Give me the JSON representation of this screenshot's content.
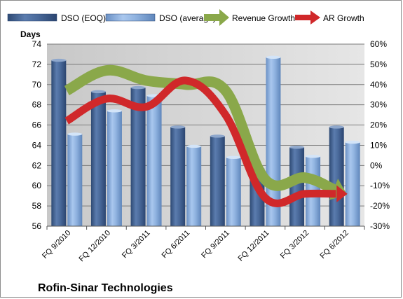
{
  "chart_data": {
    "type": "bar",
    "title": "Rofin-Sinar Technologies",
    "ylabel": "Days",
    "categories": [
      "FQ 9/2010",
      "FQ 12/2010",
      "FQ 3/2011",
      "FQ 6/2011",
      "FQ 9/2011",
      "FQ 12/2011",
      "FQ 3/2012",
      "FQ 6/2012"
    ],
    "ylim": [
      56,
      74
    ],
    "yticks": [
      56,
      58,
      60,
      62,
      64,
      66,
      68,
      70,
      72,
      74
    ],
    "y2lim": [
      -30,
      60
    ],
    "y2ticks": [
      "-30%",
      "-20%",
      "-10%",
      "0%",
      "10%",
      "20%",
      "30%",
      "40%",
      "50%",
      "60%"
    ],
    "grid": true,
    "legend_position": "top",
    "series": [
      {
        "name": "DSO (EOQ)",
        "kind": "bar",
        "axis": "left",
        "color": "#4a6a9b",
        "values": [
          72.4,
          69.3,
          69.7,
          65.8,
          64.9,
          61.7,
          63.8,
          65.8
        ]
      },
      {
        "name": "DSO (average)",
        "kind": "bar",
        "axis": "left",
        "color": "#8fb3e0",
        "values": [
          65.1,
          67.4,
          68.9,
          63.9,
          62.8,
          72.7,
          62.9,
          64.3
        ]
      },
      {
        "name": "Revenue Growth",
        "kind": "arrow-line",
        "axis": "right",
        "color": "#8aa84a",
        "values": [
          37,
          47,
          42,
          40,
          37,
          -7,
          -6,
          -14
        ]
      },
      {
        "name": "AR Growth",
        "kind": "arrow-line",
        "axis": "right",
        "color": "#d0282a",
        "values": [
          22,
          33,
          29,
          42,
          25,
          -16,
          -14,
          -14
        ]
      }
    ]
  }
}
